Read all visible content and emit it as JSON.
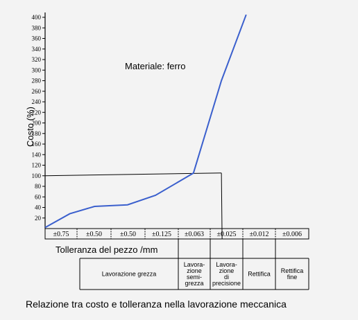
{
  "chart_data": {
    "type": "line",
    "ylabel": "Costo (%)",
    "xlabel": "Tolleranza del pezzo /mm",
    "annotation": "Materiale: ferro",
    "caption": "Relazione tra costo e tolleranza nella lavorazione meccanica",
    "ylim": [
      0,
      410
    ],
    "yticks": [
      20,
      40,
      60,
      80,
      100,
      120,
      140,
      160,
      180,
      200,
      220,
      240,
      260,
      280,
      300,
      320,
      340,
      360,
      380,
      400
    ],
    "tolerance_labels": [
      "±0.75",
      "±0.50",
      "±0.50",
      "±0.125",
      "±0.063",
      "±0.025",
      "±0.012",
      "±0.006"
    ],
    "processes": [
      {
        "label": "Lavorazione grezza",
        "span": [
          0,
          4
        ]
      },
      {
        "label": "Lavora-\nzione\nsemi-\ngrezza",
        "span": [
          4,
          5
        ]
      },
      {
        "label": "Lavora-\nzione\ndi\nprecisione",
        "span": [
          5,
          6
        ]
      },
      {
        "label": "Rettifica",
        "span": [
          6,
          7
        ]
      },
      {
        "label": "Rettifica\nfine",
        "span": [
          7,
          8
        ]
      }
    ],
    "series": [
      {
        "x": [
          0,
          0.75,
          1.5,
          2.5,
          3.35,
          4.5,
          5.35,
          6.1
        ],
        "values": [
          2,
          28,
          42,
          45,
          63,
          105,
          280,
          405
        ]
      }
    ],
    "reference_value": 100,
    "reference_x": 5.35,
    "colors": {
      "line": "#3a5fcd",
      "axis": "#000000"
    }
  }
}
